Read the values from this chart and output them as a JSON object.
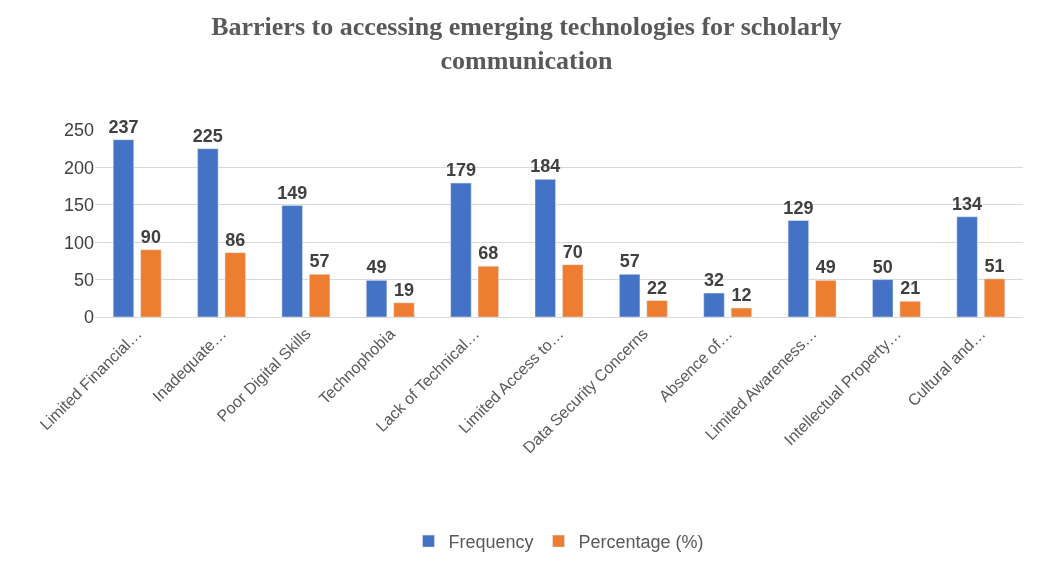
{
  "chart_data": {
    "type": "bar",
    "title": "Barriers to accessing emerging technologies for scholarly communication",
    "categories": [
      "Limited Financial…",
      "Inadequate…",
      "Poor Digital Skills",
      "Technophobia",
      "Lack of Technical…",
      "Limited Access to…",
      "Data Security Concerns",
      "Absence of…",
      "Limited Awareness…",
      "Intellectual Property…",
      "Cultural and…"
    ],
    "series": [
      {
        "name": "Frequency",
        "color": "#4472c4",
        "values": [
          237,
          225,
          149,
          49,
          179,
          184,
          57,
          32,
          129,
          50,
          134
        ]
      },
      {
        "name": "Percentage (%)",
        "color": "#ed7d31",
        "values": [
          90,
          86,
          57,
          19,
          68,
          70,
          22,
          12,
          49,
          21,
          51
        ]
      }
    ],
    "ylim": [
      0,
      250
    ],
    "yticks": [
      0,
      50,
      100,
      150,
      200,
      250
    ],
    "grid": "y",
    "legend": "bottom",
    "data_labels": true
  }
}
